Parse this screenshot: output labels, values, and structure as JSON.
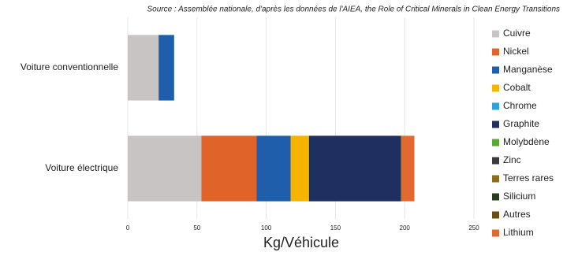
{
  "chart_data": {
    "type": "stacked-barh",
    "source": "Source : Assemblée nationale, d'après les données de l'AIEA, the Role of Critical Minerals in Clean Energy Transitions",
    "x_label": "Kg/Véhicule",
    "categories": [
      "Voiture conventionnelle",
      "Voiture électrique"
    ],
    "series": [
      {
        "name": "Cuivre",
        "color": "#c9c4c4",
        "values": [
          22.3,
          53.2
        ]
      },
      {
        "name": "Nickel",
        "color": "#e0632a",
        "values": [
          0,
          39.9
        ]
      },
      {
        "name": "Manganèse",
        "color": "#1f5eab",
        "values": [
          11.2,
          24.5
        ]
      },
      {
        "name": "Cobalt",
        "color": "#f5b400",
        "values": [
          0,
          13.3
        ]
      },
      {
        "name": "Chrome",
        "color": "#30a0d8",
        "values": [
          0,
          0
        ]
      },
      {
        "name": "Graphite",
        "color": "#1f2f5f",
        "values": [
          0,
          66.3
        ]
      },
      {
        "name": "Molybdène",
        "color": "#5aa637",
        "values": [
          0,
          0
        ]
      },
      {
        "name": "Zinc",
        "color": "#3b3b3b",
        "values": [
          0,
          0.1
        ]
      },
      {
        "name": "Terres rares",
        "color": "#8c6d1c",
        "values": [
          0,
          0.5
        ]
      },
      {
        "name": "Silicium",
        "color": "#263e1f",
        "values": [
          0,
          0
        ]
      },
      {
        "name": "Autres",
        "color": "#6b4e12",
        "values": [
          0,
          0.3
        ]
      },
      {
        "name": "Lithium",
        "color": "#e2692f",
        "values": [
          0,
          8.9
        ]
      }
    ],
    "xlim": [
      0,
      250
    ],
    "xticks": [
      0,
      50,
      100,
      150,
      200,
      250
    ],
    "grid": true,
    "legend": "right"
  }
}
